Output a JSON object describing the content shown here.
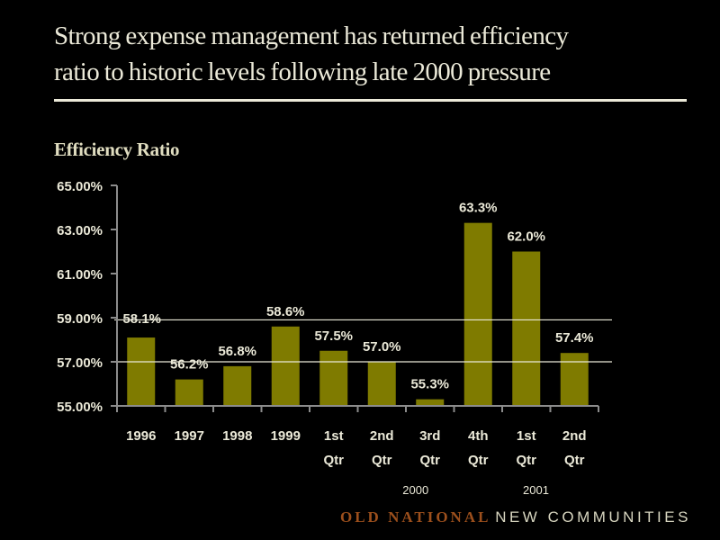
{
  "slide": {
    "title_line1": "Strong expense management has returned efficiency",
    "title_line2": "ratio to historic levels following late 2000 pressure",
    "footer_brand": "OLD NATIONAL",
    "footer_tagline": "NEW COMMUNITIES"
  },
  "colors": {
    "background": "#000000",
    "bar": "#7f7b00",
    "text": "#ebe9d8",
    "brand": "#9c4f1c",
    "axis": "#8c8c8c"
  },
  "chart_data": {
    "type": "bar",
    "title": "Efficiency Ratio",
    "xlabel": "",
    "ylabel": "",
    "categories": [
      {
        "line1": "1996",
        "line2": ""
      },
      {
        "line1": "1997",
        "line2": ""
      },
      {
        "line1": "1998",
        "line2": ""
      },
      {
        "line1": "1999",
        "line2": ""
      },
      {
        "line1": "1st",
        "line2": "Qtr"
      },
      {
        "line1": "2nd",
        "line2": "Qtr"
      },
      {
        "line1": "3rd",
        "line2": "Qtr"
      },
      {
        "line1": "4th",
        "line2": "Qtr"
      },
      {
        "line1": "1st",
        "line2": "Qtr"
      },
      {
        "line1": "2nd",
        "line2": "Qtr"
      }
    ],
    "values": [
      58.1,
      56.2,
      56.8,
      58.6,
      57.5,
      57.0,
      55.3,
      63.3,
      62.0,
      57.4
    ],
    "value_labels": [
      "58.1%",
      "56.2%",
      "56.8%",
      "58.6%",
      "57.5%",
      "57.0%",
      "55.3%",
      "63.3%",
      "62.0%",
      "57.4%"
    ],
    "groups": [
      {
        "label": "2000",
        "categories": [
          4,
          5,
          6,
          7
        ]
      },
      {
        "label": "2001",
        "categories": [
          8,
          9
        ]
      }
    ],
    "ylim": [
      55,
      65
    ],
    "yticks": [
      55,
      57,
      59,
      61,
      63,
      65
    ],
    "ytick_labels": [
      "55.00%",
      "57.00%",
      "59.00%",
      "61.00%",
      "63.00%",
      "65.00%"
    ],
    "reference_lines": [
      58.9,
      57.0
    ],
    "grid": false,
    "legend": "none"
  }
}
